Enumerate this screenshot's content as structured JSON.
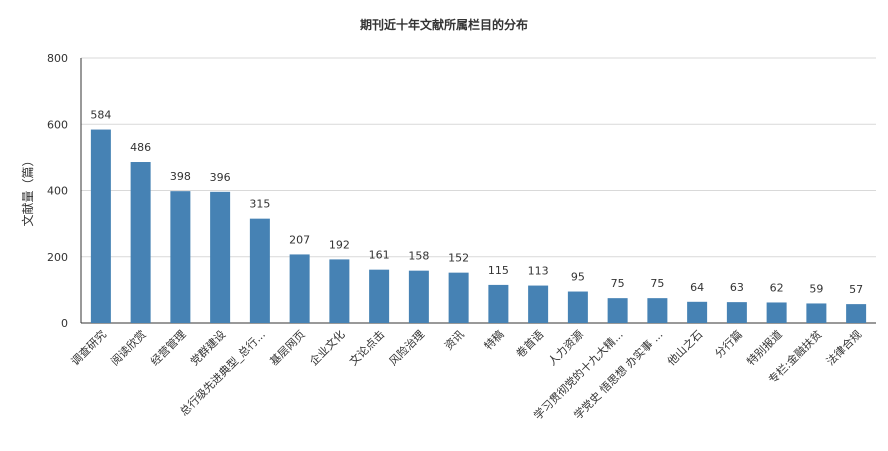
{
  "chart_data": {
    "type": "bar",
    "title": "期刊近十年文献所属栏目的分布",
    "xlabel": "",
    "ylabel": "文献量（篇）",
    "ylim": [
      0,
      800
    ],
    "yticks": [
      0,
      200,
      400,
      600,
      800
    ],
    "grid": true,
    "bar_color": "#4682b4",
    "categories": [
      "调查研究",
      "阅读欣赏",
      "经营管理",
      "党群建设",
      "总行级先进典型_总行...",
      "基层网页",
      "企业文化",
      "文论点击",
      "风险治理",
      "资讯",
      "特稿",
      "卷首语",
      "人力资源",
      "学习贯彻党的十九大精...",
      "学党史 悟思想 办实事 ...",
      "他山之石",
      "分行篇",
      "特别报道",
      "专栏:金融扶贫",
      "法律合规"
    ],
    "values": [
      584,
      486,
      398,
      396,
      315,
      207,
      192,
      161,
      158,
      152,
      115,
      113,
      95,
      75,
      75,
      64,
      63,
      62,
      59,
      57
    ]
  }
}
